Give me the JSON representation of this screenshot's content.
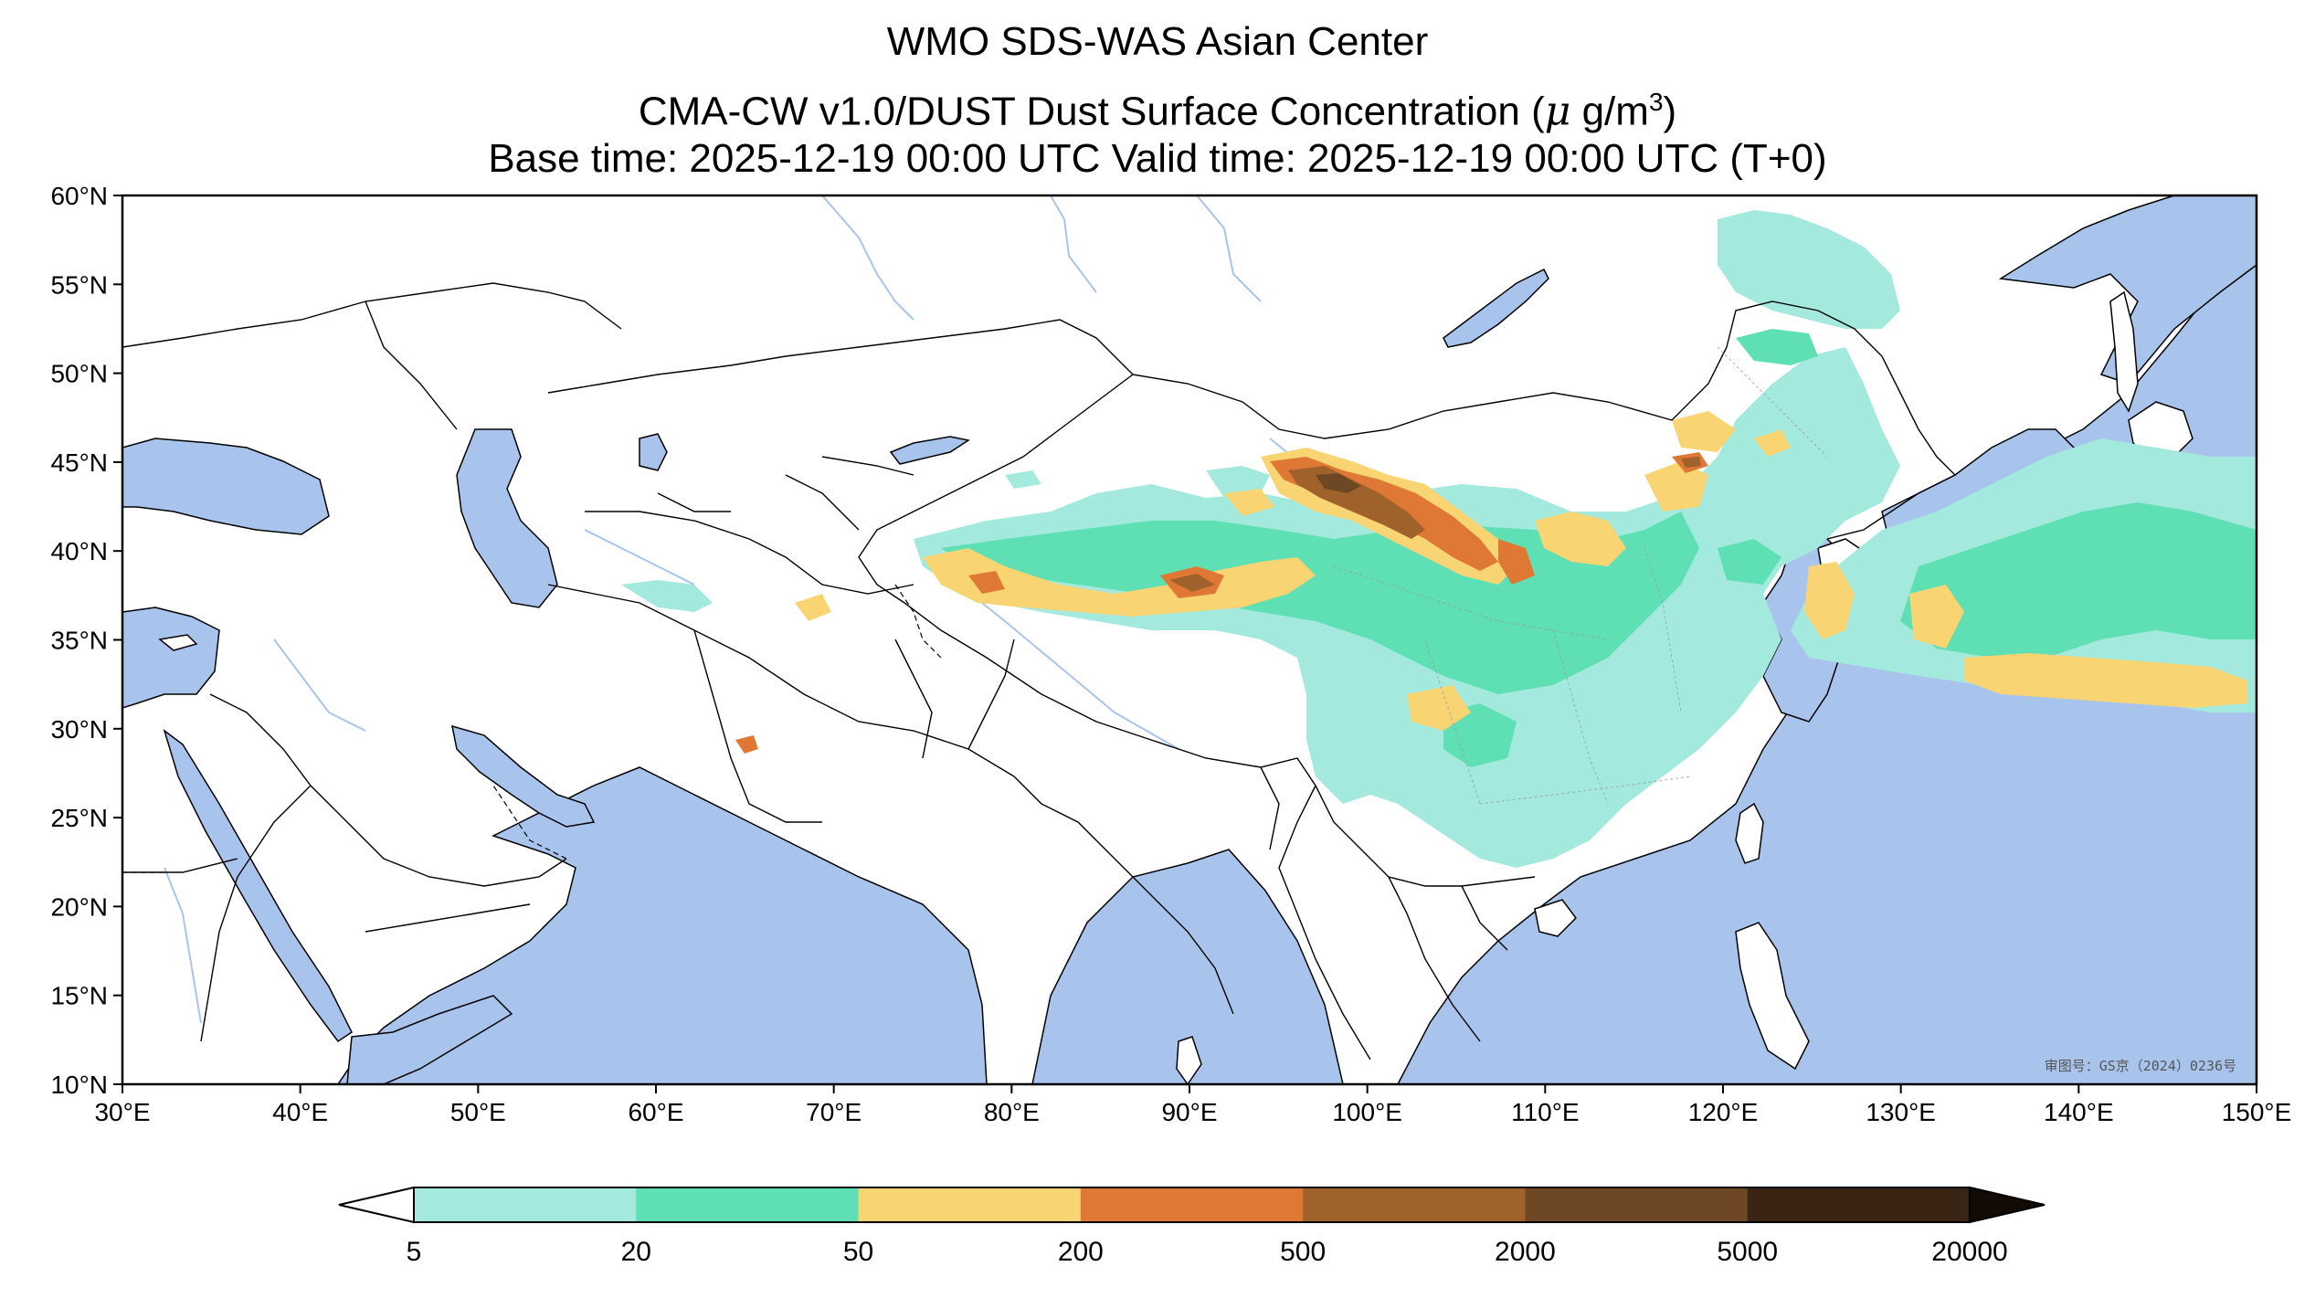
{
  "title": {
    "line1": "WMO SDS-WAS Asian Center",
    "line2_prefix": "CMA-CW v1.0/DUST Dust Surface Concentration (",
    "line2_mu": "μ",
    "line2_unit": " g/m",
    "line2_sup": "3",
    "line2_suffix": ")",
    "line3": "Base time: 2025-12-19 00:00 UTC Valid time: 2025-12-19 00:00 UTC (T+0)"
  },
  "axes": {
    "lon_ticks": [
      "30°E",
      "40°E",
      "50°E",
      "60°E",
      "70°E",
      "80°E",
      "90°E",
      "100°E",
      "110°E",
      "120°E",
      "130°E",
      "140°E",
      "150°E"
    ],
    "lat_ticks": [
      "60°N",
      "55°N",
      "50°N",
      "45°N",
      "40°N",
      "35°N",
      "30°N",
      "25°N",
      "20°N",
      "15°N",
      "10°N"
    ],
    "lon_range": [
      30,
      150
    ],
    "lat_range": [
      10,
      60
    ]
  },
  "approval_text": "审图号：GS京（2024）0236号",
  "colors": {
    "ocean": "#a9c4ec",
    "land": "#ffffff",
    "border": "#000000",
    "river": "#a9c4ec"
  },
  "colorbar": {
    "levels": [
      "5",
      "20",
      "50",
      "200",
      "500",
      "2000",
      "5000",
      "20000"
    ],
    "colors": [
      "#a3e9dd",
      "#5ee0b4",
      "#f9d472",
      "#de7834",
      "#9f622b",
      "#6e4724",
      "#3a2514"
    ],
    "under_color": "#ffffff",
    "over_color": "#120b05"
  }
}
